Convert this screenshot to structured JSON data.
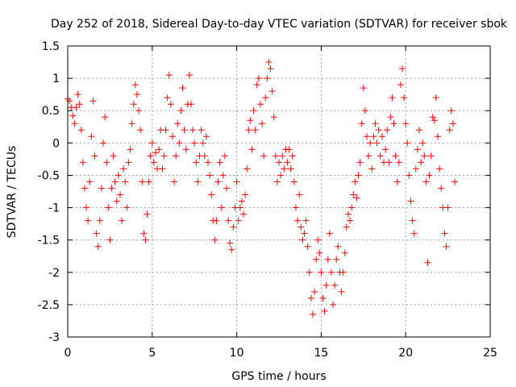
{
  "chart_data": {
    "type": "scatter",
    "title": "Day 252 of 2018, Sidereal Day-to-day VTEC variation (SDTVAR) for receiver sbok",
    "xlabel": "GPS time / hours",
    "ylabel": "SDTVAR / TECUs",
    "xlim": [
      0,
      25
    ],
    "ylim": [
      -3,
      1.5
    ],
    "x_ticks": [
      0,
      5,
      10,
      15,
      20,
      25
    ],
    "x_tick_labels": [
      "0",
      "5",
      "10",
      "15",
      "20",
      "25"
    ],
    "y_ticks": [
      -3,
      -2.5,
      -2,
      -1.5,
      -1,
      -0.5,
      0,
      0.5,
      1,
      1.5
    ],
    "y_tick_labels": [
      "-3",
      "-2.5",
      "-2",
      "-1.5",
      "-1",
      "-0.5",
      "0",
      "0.5",
      "1",
      "1.5"
    ],
    "grid": true,
    "marker": "+",
    "color": "#ff0000",
    "series": [
      {
        "name": "SDTVAR",
        "points": [
          [
            0.0,
            0.68
          ],
          [
            0.1,
            0.65
          ],
          [
            0.2,
            0.55
          ],
          [
            0.3,
            0.42
          ],
          [
            0.4,
            0.3
          ],
          [
            0.5,
            0.55
          ],
          [
            0.6,
            0.75
          ],
          [
            0.7,
            0.6
          ],
          [
            0.8,
            0.2
          ],
          [
            0.9,
            -0.3
          ],
          [
            1.0,
            -0.7
          ],
          [
            1.1,
            -1.0
          ],
          [
            1.2,
            -1.2
          ],
          [
            1.3,
            -0.6
          ],
          [
            1.4,
            0.1
          ],
          [
            1.5,
            0.65
          ],
          [
            1.6,
            -0.2
          ],
          [
            1.7,
            -1.4
          ],
          [
            1.8,
            -1.6
          ],
          [
            1.9,
            -1.2
          ],
          [
            2.0,
            -0.7
          ],
          [
            2.1,
            0.0
          ],
          [
            2.2,
            0.4
          ],
          [
            2.3,
            -0.3
          ],
          [
            2.4,
            -1.0
          ],
          [
            2.5,
            -1.5
          ],
          [
            2.6,
            -0.7
          ],
          [
            2.7,
            -0.2
          ],
          [
            2.8,
            -0.6
          ],
          [
            2.9,
            -0.9
          ],
          [
            3.0,
            -0.5
          ],
          [
            3.1,
            -0.8
          ],
          [
            3.2,
            -1.2
          ],
          [
            3.3,
            -0.4
          ],
          [
            3.4,
            -0.6
          ],
          [
            3.5,
            -1.0
          ],
          [
            3.6,
            -0.3
          ],
          [
            3.7,
            -0.1
          ],
          [
            3.8,
            0.3
          ],
          [
            3.9,
            0.6
          ],
          [
            4.0,
            0.9
          ],
          [
            4.1,
            0.75
          ],
          [
            4.2,
            0.5
          ],
          [
            4.3,
            0.2
          ],
          [
            4.4,
            -0.6
          ],
          [
            4.5,
            -1.4
          ],
          [
            4.6,
            -1.5
          ],
          [
            4.7,
            -1.1
          ],
          [
            4.8,
            -0.6
          ],
          [
            4.9,
            -0.2
          ],
          [
            5.0,
            0.0
          ],
          [
            5.1,
            -0.3
          ],
          [
            5.2,
            -0.15
          ],
          [
            5.3,
            -0.4
          ],
          [
            5.4,
            -0.1
          ],
          [
            5.5,
            0.2
          ],
          [
            5.6,
            -0.4
          ],
          [
            5.7,
            -0.2
          ],
          [
            5.8,
            0.2
          ],
          [
            5.9,
            0.7
          ],
          [
            6.0,
            1.05
          ],
          [
            6.1,
            0.6
          ],
          [
            6.2,
            0.1
          ],
          [
            6.3,
            -0.6
          ],
          [
            6.4,
            -0.2
          ],
          [
            6.5,
            0.3
          ],
          [
            6.6,
            0.0
          ],
          [
            6.7,
            0.5
          ],
          [
            6.8,
            0.85
          ],
          [
            6.9,
            0.2
          ],
          [
            7.0,
            -0.1
          ],
          [
            7.1,
            0.6
          ],
          [
            7.2,
            1.05
          ],
          [
            7.3,
            0.6
          ],
          [
            7.4,
            0.2
          ],
          [
            7.5,
            0.0
          ],
          [
            7.6,
            -0.3
          ],
          [
            7.7,
            -0.6
          ],
          [
            7.8,
            -0.2
          ],
          [
            7.9,
            0.2
          ],
          [
            8.0,
            0.0
          ],
          [
            8.1,
            -0.2
          ],
          [
            8.2,
            0.1
          ],
          [
            8.3,
            -0.3
          ],
          [
            8.4,
            -0.5
          ],
          [
            8.5,
            -0.8
          ],
          [
            8.6,
            -1.2
          ],
          [
            8.7,
            -1.5
          ],
          [
            8.8,
            -1.2
          ],
          [
            8.9,
            -0.6
          ],
          [
            9.0,
            -0.3
          ],
          [
            9.1,
            -1.0
          ],
          [
            9.2,
            -0.5
          ],
          [
            9.3,
            -0.2
          ],
          [
            9.4,
            -0.7
          ],
          [
            9.5,
            -1.2
          ],
          [
            9.6,
            -1.55
          ],
          [
            9.7,
            -1.65
          ],
          [
            9.8,
            -1.3
          ],
          [
            9.9,
            -1.0
          ],
          [
            10.0,
            -0.6
          ],
          [
            10.1,
            -1.2
          ],
          [
            10.2,
            -1.0
          ],
          [
            10.3,
            -0.9
          ],
          [
            10.4,
            -1.1
          ],
          [
            10.5,
            -0.8
          ],
          [
            10.6,
            -0.4
          ],
          [
            10.7,
            0.2
          ],
          [
            10.8,
            0.35
          ],
          [
            10.9,
            -0.1
          ],
          [
            11.0,
            0.5
          ],
          [
            11.1,
            0.2
          ],
          [
            11.2,
            0.9
          ],
          [
            11.3,
            1.0
          ],
          [
            11.4,
            0.6
          ],
          [
            11.5,
            0.3
          ],
          [
            11.6,
            -0.2
          ],
          [
            11.7,
            0.7
          ],
          [
            11.8,
            1.0
          ],
          [
            11.9,
            1.25
          ],
          [
            12.0,
            1.15
          ],
          [
            12.1,
            0.8
          ],
          [
            12.2,
            0.4
          ],
          [
            12.3,
            -0.2
          ],
          [
            12.4,
            -0.6
          ],
          [
            12.5,
            -0.3
          ],
          [
            12.6,
            -0.5
          ],
          [
            12.7,
            -0.2
          ],
          [
            12.8,
            -0.4
          ],
          [
            12.9,
            -0.1
          ],
          [
            13.0,
            -0.3
          ],
          [
            13.1,
            -0.1
          ],
          [
            13.2,
            -0.4
          ],
          [
            13.3,
            -0.2
          ],
          [
            13.4,
            -0.6
          ],
          [
            13.5,
            -1.0
          ],
          [
            13.6,
            -1.2
          ],
          [
            13.7,
            -0.8
          ],
          [
            13.8,
            -1.3
          ],
          [
            13.9,
            -1.5
          ],
          [
            14.0,
            -1.4
          ],
          [
            14.1,
            -1.2
          ],
          [
            14.2,
            -1.6
          ],
          [
            14.3,
            -2.0
          ],
          [
            14.4,
            -2.4
          ],
          [
            14.5,
            -2.65
          ],
          [
            14.6,
            -2.3
          ],
          [
            14.7,
            -1.8
          ],
          [
            14.8,
            -1.5
          ],
          [
            14.9,
            -1.7
          ],
          [
            15.0,
            -2.0
          ],
          [
            15.1,
            -2.4
          ],
          [
            15.2,
            -2.6
          ],
          [
            15.3,
            -2.2
          ],
          [
            15.4,
            -1.8
          ],
          [
            15.5,
            -1.4
          ],
          [
            15.6,
            -2.0
          ],
          [
            15.7,
            -2.5
          ],
          [
            15.8,
            -2.2
          ],
          [
            15.9,
            -1.8
          ],
          [
            16.0,
            -1.6
          ],
          [
            16.1,
            -2.0
          ],
          [
            16.2,
            -2.3
          ],
          [
            16.3,
            -2.0
          ],
          [
            16.4,
            -1.7
          ],
          [
            16.5,
            -1.3
          ],
          [
            16.6,
            -1.1
          ],
          [
            16.7,
            -1.2
          ],
          [
            16.8,
            -1.0
          ],
          [
            16.9,
            -0.8
          ],
          [
            17.0,
            -0.6
          ],
          [
            17.1,
            -0.85
          ],
          [
            17.2,
            -0.5
          ],
          [
            17.3,
            -0.3
          ],
          [
            17.4,
            0.3
          ],
          [
            17.5,
            0.85
          ],
          [
            17.6,
            0.5
          ],
          [
            17.7,
            0.1
          ],
          [
            17.8,
            -0.2
          ],
          [
            17.9,
            0.0
          ],
          [
            18.0,
            -0.4
          ],
          [
            18.1,
            0.1
          ],
          [
            18.2,
            0.3
          ],
          [
            18.3,
            0.0
          ],
          [
            18.4,
            0.2
          ],
          [
            18.5,
            -0.2
          ],
          [
            18.6,
            0.1
          ],
          [
            18.7,
            -0.3
          ],
          [
            18.8,
            -0.1
          ],
          [
            18.9,
            0.2
          ],
          [
            19.0,
            -0.3
          ],
          [
            19.1,
            0.4
          ],
          [
            19.2,
            0.7
          ],
          [
            19.3,
            0.3
          ],
          [
            19.4,
            -0.2
          ],
          [
            19.5,
            -0.6
          ],
          [
            19.6,
            -0.3
          ],
          [
            19.7,
            0.9
          ],
          [
            19.8,
            1.15
          ],
          [
            19.9,
            0.7
          ],
          [
            20.0,
            0.3
          ],
          [
            20.1,
            0.0
          ],
          [
            20.2,
            -0.5
          ],
          [
            20.3,
            -0.9
          ],
          [
            20.4,
            -1.2
          ],
          [
            20.5,
            -1.4
          ],
          [
            20.6,
            -0.4
          ],
          [
            20.7,
            -0.1
          ],
          [
            20.8,
            0.2
          ],
          [
            20.9,
            -0.3
          ],
          [
            21.0,
            0.0
          ],
          [
            21.1,
            -0.2
          ],
          [
            21.2,
            -0.6
          ],
          [
            21.3,
            -1.85
          ],
          [
            21.4,
            -0.5
          ],
          [
            21.5,
            -0.2
          ],
          [
            21.6,
            0.4
          ],
          [
            21.7,
            0.35
          ],
          [
            21.8,
            0.7
          ],
          [
            21.9,
            0.1
          ],
          [
            22.0,
            -0.4
          ],
          [
            22.1,
            -0.7
          ],
          [
            22.2,
            -1.0
          ],
          [
            22.3,
            -1.4
          ],
          [
            22.4,
            -1.6
          ],
          [
            22.5,
            -1.0
          ],
          [
            22.6,
            0.2
          ],
          [
            22.7,
            0.5
          ],
          [
            22.8,
            0.3
          ],
          [
            22.9,
            -0.6
          ]
        ]
      }
    ]
  }
}
